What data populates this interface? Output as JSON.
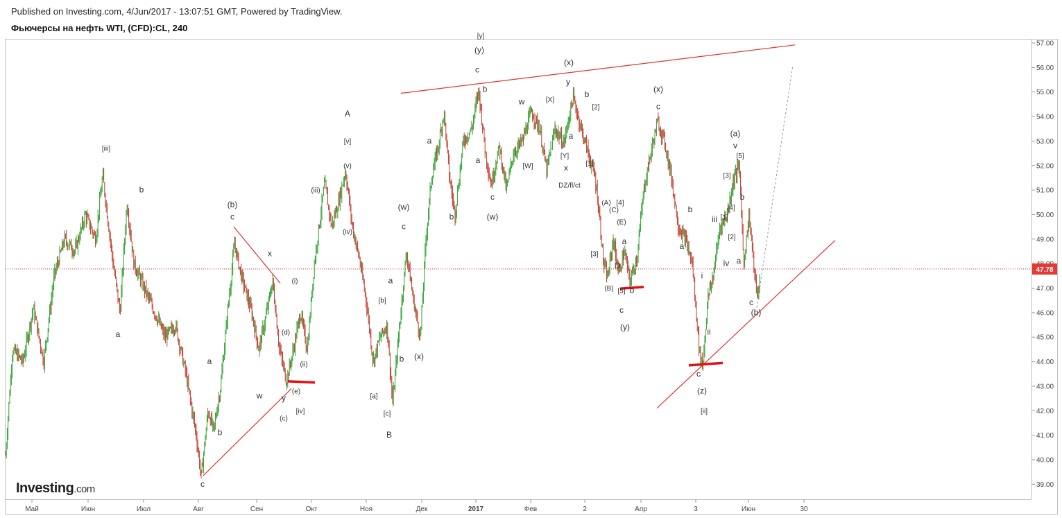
{
  "header": {
    "published": "Published on Investing.com, 4/Jun/2017 - 13:07:51 GMT, Powered by TradingView.",
    "title": "Фьючерсы на нефть WTI, (CFD):CL, 240"
  },
  "logo": {
    "main": "Investing",
    "suffix": ".com"
  },
  "colors": {
    "up": "#2ca02c",
    "down": "#c0392b",
    "trendline": "#e53030",
    "price_line": "#c62828",
    "price_tag": "#e53935"
  },
  "chart_data": {
    "type": "candlestick",
    "ylim": [
      38.5,
      57.2
    ],
    "xlim": [
      0,
      1480
    ],
    "y_ticks": [
      "57.00",
      "56.00",
      "55.00",
      "54.00",
      "53.00",
      "52.00",
      "51.00",
      "50.00",
      "49.00",
      "48.00",
      "47.00",
      "46.00",
      "45.00",
      "44.00",
      "43.00",
      "42.00",
      "41.00",
      "40.00",
      "39.00"
    ],
    "x_ticks": [
      {
        "label": "Май",
        "x": 38
      },
      {
        "label": "Июн",
        "x": 119
      },
      {
        "label": "Июл",
        "x": 199
      },
      {
        "label": "Авг",
        "x": 278
      },
      {
        "label": "Сен",
        "x": 362
      },
      {
        "label": "Окт",
        "x": 441
      },
      {
        "label": "Ноя",
        "x": 520
      },
      {
        "label": "Дек",
        "x": 600
      },
      {
        "label": "2017",
        "x": 678
      },
      {
        "label": "Фев",
        "x": 757
      },
      {
        "label": "2",
        "x": 835
      },
      {
        "label": "Апр",
        "x": 916
      },
      {
        "label": "3",
        "x": 995
      },
      {
        "label": "Июн",
        "x": 1071
      },
      {
        "label": "30",
        "x": 1151
      }
    ],
    "current_price": "47.78",
    "current_price_value": 47.78,
    "price_path": [
      [
        0,
        40.2
      ],
      [
        10,
        44.5
      ],
      [
        25,
        44.0
      ],
      [
        40,
        46.2
      ],
      [
        55,
        44.0
      ],
      [
        70,
        47.5
      ],
      [
        85,
        49.0
      ],
      [
        100,
        48.5
      ],
      [
        115,
        50.0
      ],
      [
        130,
        49.0
      ],
      [
        140,
        51.6
      ],
      [
        155,
        48.0
      ],
      [
        165,
        46.0
      ],
      [
        175,
        50.5
      ],
      [
        185,
        48.0
      ],
      [
        200,
        47.0
      ],
      [
        215,
        46.0
      ],
      [
        230,
        45.0
      ],
      [
        245,
        45.5
      ],
      [
        260,
        43.5
      ],
      [
        275,
        41.0
      ],
      [
        282,
        39.3
      ],
      [
        292,
        42.0
      ],
      [
        300,
        41.2
      ],
      [
        310,
        43.0
      ],
      [
        320,
        46.0
      ],
      [
        330,
        48.8
      ],
      [
        340,
        47.5
      ],
      [
        355,
        46.0
      ],
      [
        365,
        44.5
      ],
      [
        375,
        45.8
      ],
      [
        385,
        47.3
      ],
      [
        395,
        44.5
      ],
      [
        405,
        43.2
      ],
      [
        415,
        44.5
      ],
      [
        425,
        46.0
      ],
      [
        435,
        44.5
      ],
      [
        445,
        48.0
      ],
      [
        460,
        51.3
      ],
      [
        470,
        49.5
      ],
      [
        480,
        50.5
      ],
      [
        490,
        51.8
      ],
      [
        500,
        49.5
      ],
      [
        510,
        48.2
      ],
      [
        520,
        46.5
      ],
      [
        530,
        44.0
      ],
      [
        540,
        45.0
      ],
      [
        550,
        45.5
      ],
      [
        558,
        42.3
      ],
      [
        568,
        45.5
      ],
      [
        578,
        48.5
      ],
      [
        588,
        46.5
      ],
      [
        598,
        45.0
      ],
      [
        606,
        49.0
      ],
      [
        614,
        51.5
      ],
      [
        624,
        52.8
      ],
      [
        632,
        54.2
      ],
      [
        640,
        51.5
      ],
      [
        648,
        50.0
      ],
      [
        660,
        53.0
      ],
      [
        672,
        53.5
      ],
      [
        682,
        55.1
      ],
      [
        692,
        52.5
      ],
      [
        700,
        51.2
      ],
      [
        712,
        52.8
      ],
      [
        722,
        51.0
      ],
      [
        732,
        52.5
      ],
      [
        745,
        53.0
      ],
      [
        758,
        54.2
      ],
      [
        770,
        53.5
      ],
      [
        780,
        51.8
      ],
      [
        792,
        53.5
      ],
      [
        805,
        52.9
      ],
      [
        818,
        54.8
      ],
      [
        830,
        53.5
      ],
      [
        840,
        52.5
      ],
      [
        850,
        51.5
      ],
      [
        856,
        50.0
      ],
      [
        862,
        48.0
      ],
      [
        868,
        47.4
      ],
      [
        876,
        49.0
      ],
      [
        884,
        47.6
      ],
      [
        892,
        48.5
      ],
      [
        900,
        47.3
      ],
      [
        910,
        48.2
      ],
      [
        920,
        51.0
      ],
      [
        930,
        52.5
      ],
      [
        940,
        53.8
      ],
      [
        950,
        53.0
      ],
      [
        960,
        51.5
      ],
      [
        970,
        49.5
      ],
      [
        980,
        49.0
      ],
      [
        990,
        48.0
      ],
      [
        1000,
        44.5
      ],
      [
        1005,
        43.8
      ],
      [
        1012,
        46.5
      ],
      [
        1020,
        47.5
      ],
      [
        1030,
        49.5
      ],
      [
        1040,
        50.0
      ],
      [
        1050,
        51.5
      ],
      [
        1058,
        52.0
      ],
      [
        1064,
        48.0
      ],
      [
        1072,
        50.0
      ],
      [
        1080,
        47.5
      ],
      [
        1085,
        46.5
      ],
      [
        1088,
        47.78
      ]
    ],
    "trendlines": [
      {
        "from": [
          570,
          54.95
        ],
        "to": [
          1138,
          56.92
        ]
      },
      {
        "from": [
          939,
          42.1
        ],
        "to": [
          1196,
          48.95
        ]
      },
      {
        "from": [
          285,
          39.35
        ],
        "to": [
          412,
          42.9
        ]
      },
      {
        "from": [
          329,
          49.5
        ],
        "to": [
          396,
          47.2
        ]
      }
    ],
    "dashed_projection": {
      "from": [
        1083,
        46.2
      ],
      "to": [
        1135,
        56.1
      ]
    },
    "support_marks": [
      {
        "from": [
          407,
          43.2
        ],
        "to": [
          446,
          43.15
        ]
      },
      {
        "from": [
          886,
          46.98
        ],
        "to": [
          920,
          47.05
        ]
      },
      {
        "from": [
          985,
          43.85
        ],
        "to": [
          1034,
          43.95
        ]
      }
    ],
    "annotations": [
      {
        "t": "[iii]",
        "x": 145,
        "y": 52.6
      },
      {
        "t": "b",
        "x": 196,
        "y": 50.9
      },
      {
        "t": "a",
        "x": 162,
        "y": 45.0
      },
      {
        "t": "a",
        "x": 294,
        "y": 43.9
      },
      {
        "t": "b",
        "x": 309,
        "y": 41.0
      },
      {
        "t": "c",
        "x": 284,
        "y": 38.9
      },
      {
        "t": "(b)",
        "x": 327,
        "y": 50.3
      },
      {
        "t": "c",
        "x": 327,
        "y": 49.8
      },
      {
        "t": "x",
        "x": 381,
        "y": 48.3
      },
      {
        "t": "w",
        "x": 366,
        "y": 42.5
      },
      {
        "t": "y",
        "x": 401,
        "y": 42.4
      },
      {
        "t": "(c)",
        "x": 401,
        "y": 41.6
      },
      {
        "t": "[iv]",
        "x": 425,
        "y": 41.9
      },
      {
        "t": "(d)",
        "x": 404,
        "y": 45.1
      },
      {
        "t": "(e)",
        "x": 419,
        "y": 42.7
      },
      {
        "t": "(i)",
        "x": 417,
        "y": 47.2
      },
      {
        "t": "(ii)",
        "x": 430,
        "y": 43.8
      },
      {
        "t": "(iii)",
        "x": 447,
        "y": 50.9
      },
      {
        "t": "(iv)",
        "x": 493,
        "y": 49.2
      },
      {
        "t": "(v)",
        "x": 493,
        "y": 51.9
      },
      {
        "t": "[v]",
        "x": 493,
        "y": 52.9
      },
      {
        "t": "A",
        "x": 493,
        "y": 54.0
      },
      {
        "t": "(w)",
        "x": 574,
        "y": 50.2
      },
      {
        "t": "c",
        "x": 574,
        "y": 49.4
      },
      {
        "t": "a",
        "x": 555,
        "y": 47.2
      },
      {
        "t": "[b]",
        "x": 543,
        "y": 46.4
      },
      {
        "t": "[a]",
        "x": 531,
        "y": 42.5
      },
      {
        "t": "[c]",
        "x": 550,
        "y": 41.8
      },
      {
        "t": "B",
        "x": 553,
        "y": 40.9
      },
      {
        "t": "b",
        "x": 571,
        "y": 44.0
      },
      {
        "t": "(x)",
        "x": 596,
        "y": 44.1
      },
      {
        "t": "a",
        "x": 611,
        "y": 52.9
      },
      {
        "t": "b",
        "x": 643,
        "y": 49.8
      },
      {
        "t": "a",
        "x": 681,
        "y": 52.1
      },
      {
        "t": "c",
        "x": 702,
        "y": 50.6
      },
      {
        "t": "(w)",
        "x": 702,
        "y": 49.8
      },
      {
        "t": "[y]",
        "x": 685,
        "y": 57.2
      },
      {
        "t": "(y)",
        "x": 683,
        "y": 56.6
      },
      {
        "t": "c",
        "x": 680,
        "y": 55.8
      },
      {
        "t": "b",
        "x": 691,
        "y": 55.0
      },
      {
        "t": "w",
        "x": 744,
        "y": 54.5
      },
      {
        "t": "[W]",
        "x": 753,
        "y": 51.9
      },
      {
        "t": "[X]",
        "x": 785,
        "y": 54.6
      },
      {
        "t": "[Y]",
        "x": 806,
        "y": 52.3
      },
      {
        "t": "a",
        "x": 815,
        "y": 53.1
      },
      {
        "t": "x",
        "x": 808,
        "y": 51.8
      },
      {
        "t": "DZ/fl/ct",
        "x": 813,
        "y": 51.1
      },
      {
        "t": "(x)",
        "x": 812,
        "y": 56.1
      },
      {
        "t": "y",
        "x": 811,
        "y": 55.3
      },
      {
        "t": "b",
        "x": 838,
        "y": 54.8
      },
      {
        "t": "[2]",
        "x": 851,
        "y": 54.3
      },
      {
        "t": "[1]",
        "x": 842,
        "y": 52.0
      },
      {
        "t": "(A)",
        "x": 866,
        "y": 50.4
      },
      {
        "t": "[4]",
        "x": 886,
        "y": 50.4
      },
      {
        "t": "(C)",
        "x": 877,
        "y": 50.1
      },
      {
        "t": "(E)",
        "x": 888,
        "y": 49.6
      },
      {
        "t": "a",
        "x": 892,
        "y": 48.8
      },
      {
        "t": "[3]",
        "x": 849,
        "y": 48.3
      },
      {
        "t": "D",
        "x": 882,
        "y": 47.8
      },
      {
        "t": "(B)",
        "x": 870,
        "y": 46.9
      },
      {
        "t": "[5]",
        "x": 888,
        "y": 46.8
      },
      {
        "t": "b",
        "x": 903,
        "y": 46.8
      },
      {
        "t": "c",
        "x": 888,
        "y": 46.0
      },
      {
        "t": "(y)",
        "x": 893,
        "y": 45.3
      },
      {
        "t": "(x)",
        "x": 941,
        "y": 55.0
      },
      {
        "t": "c",
        "x": 941,
        "y": 54.3
      },
      {
        "t": "b",
        "x": 987,
        "y": 50.1
      },
      {
        "t": "a",
        "x": 975,
        "y": 48.6
      },
      {
        "t": "i",
        "x": 1004,
        "y": 47.4
      },
      {
        "t": "ii",
        "x": 1014,
        "y": 45.1
      },
      {
        "t": "c",
        "x": 999,
        "y": 43.4
      },
      {
        "t": "(z)",
        "x": 1004,
        "y": 42.7
      },
      {
        "t": "[ii]",
        "x": 1007,
        "y": 41.9
      },
      {
        "t": "iii",
        "x": 1022,
        "y": 49.7
      },
      {
        "t": "[1]",
        "x": 1036,
        "y": 49.8
      },
      {
        "t": "iv",
        "x": 1039,
        "y": 47.9
      },
      {
        "t": "[2]",
        "x": 1047,
        "y": 49.0
      },
      {
        "t": "[3]",
        "x": 1040,
        "y": 51.5
      },
      {
        "t": "[4]",
        "x": 1046,
        "y": 50.2
      },
      {
        "t": "[5]",
        "x": 1059,
        "y": 52.3
      },
      {
        "t": "v",
        "x": 1052,
        "y": 52.7
      },
      {
        "t": "(a)",
        "x": 1052,
        "y": 53.2
      },
      {
        "t": "b",
        "x": 1062,
        "y": 50.6
      },
      {
        "t": "a",
        "x": 1057,
        "y": 48.0
      },
      {
        "t": "c",
        "x": 1075,
        "y": 46.3
      },
      {
        "t": "(b)",
        "x": 1082,
        "y": 45.9
      }
    ]
  }
}
